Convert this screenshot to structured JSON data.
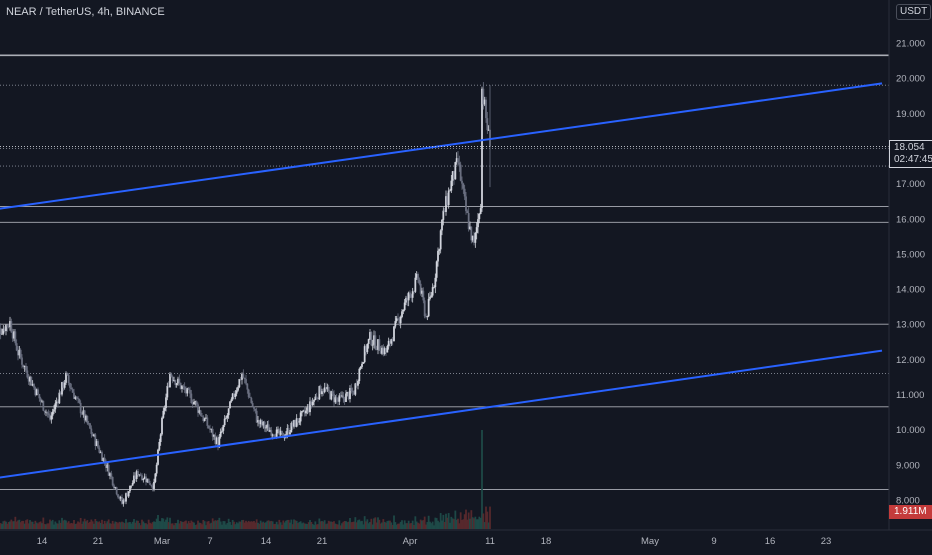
{
  "header": {
    "symbol_title": "NEAR / TetherUS, 4h, BINANCE",
    "currency_label": "USDT"
  },
  "price_tag": {
    "price": "18.054",
    "countdown": "02:47:45"
  },
  "volume_tag": "1.911M",
  "colors": {
    "background": "#131722",
    "up_candle": "#d1d4dc",
    "down_candle": "#6a6f80",
    "trendline": "#2962ff",
    "horizontal_level": "#d1d4dc",
    "volume_up": "#1f4e4a",
    "volume_down": "#5c2a2e"
  },
  "chart_data": {
    "type": "candlestick",
    "symbol": "NEAR / TetherUS",
    "interval": "4h",
    "exchange": "BINANCE",
    "y_axis": {
      "min": 7.5,
      "max": 21.5,
      "ticks": [
        "21.000",
        "20.000",
        "19.000",
        "18.000",
        "17.000",
        "16.000",
        "15.000",
        "14.000",
        "13.000",
        "12.000",
        "11.000",
        "10.000",
        "9.000",
        "8.000"
      ]
    },
    "x_axis": {
      "ticks": [
        "14",
        "21",
        "Mar",
        "7",
        "14",
        "21",
        "Apr",
        "11",
        "18",
        "May",
        "9",
        "16",
        "23"
      ]
    },
    "price_path": [
      {
        "date": "2022-02-08",
        "price": 12.7
      },
      {
        "date": "2022-02-10",
        "price": 13.05
      },
      {
        "date": "2022-02-11",
        "price": 12.2
      },
      {
        "date": "2022-02-13",
        "price": 11.2
      },
      {
        "date": "2022-02-15",
        "price": 10.3
      },
      {
        "date": "2022-02-17",
        "price": 11.5
      },
      {
        "date": "2022-02-19",
        "price": 10.5
      },
      {
        "date": "2022-02-22",
        "price": 9.0
      },
      {
        "date": "2022-02-24",
        "price": 7.9
      },
      {
        "date": "2022-02-26",
        "price": 8.8
      },
      {
        "date": "2022-02-28",
        "price": 8.4
      },
      {
        "date": "2022-03-01",
        "price": 10.2
      },
      {
        "date": "2022-03-02",
        "price": 11.6
      },
      {
        "date": "2022-03-05",
        "price": 10.8
      },
      {
        "date": "2022-03-08",
        "price": 9.6
      },
      {
        "date": "2022-03-10",
        "price": 11.0
      },
      {
        "date": "2022-03-11",
        "price": 11.6
      },
      {
        "date": "2022-03-13",
        "price": 10.2
      },
      {
        "date": "2022-03-16",
        "price": 9.8
      },
      {
        "date": "2022-03-19",
        "price": 10.5
      },
      {
        "date": "2022-03-21",
        "price": 11.2
      },
      {
        "date": "2022-03-23",
        "price": 10.8
      },
      {
        "date": "2022-03-25",
        "price": 11.1
      },
      {
        "date": "2022-03-26",
        "price": 12.0
      },
      {
        "date": "2022-03-27",
        "price": 12.6
      },
      {
        "date": "2022-03-29",
        "price": 12.2
      },
      {
        "date": "2022-03-31",
        "price": 13.4
      },
      {
        "date": "2022-04-02",
        "price": 14.3
      },
      {
        "date": "2022-04-03",
        "price": 13.2
      },
      {
        "date": "2022-04-04",
        "price": 14.2
      },
      {
        "date": "2022-04-05",
        "price": 15.9
      },
      {
        "date": "2022-04-06",
        "price": 16.9
      },
      {
        "date": "2022-04-07",
        "price": 17.6
      },
      {
        "date": "2022-04-08",
        "price": 16.2
      },
      {
        "date": "2022-04-09",
        "price": 15.2
      },
      {
        "date": "2022-04-10",
        "price": 16.8
      },
      {
        "date": "2022-04-10",
        "price": 19.7
      },
      {
        "date": "2022-04-11",
        "price": 18.05
      }
    ],
    "horizontal_levels": [
      20.65,
      16.35,
      15.9,
      13.0,
      10.65,
      8.3
    ],
    "dotted_levels": [
      19.8,
      18.0,
      17.5,
      11.6
    ],
    "trendlines": [
      {
        "from": {
          "date": "2022-02-06",
          "price": 16.2
        },
        "to": {
          "date": "2022-05-30",
          "price": 19.85
        }
      },
      {
        "from": {
          "date": "2022-02-06",
          "price": 8.55
        },
        "to": {
          "date": "2022-05-30",
          "price": 12.25
        }
      }
    ],
    "last_price": 18.054,
    "last_volume": "1.911M"
  }
}
